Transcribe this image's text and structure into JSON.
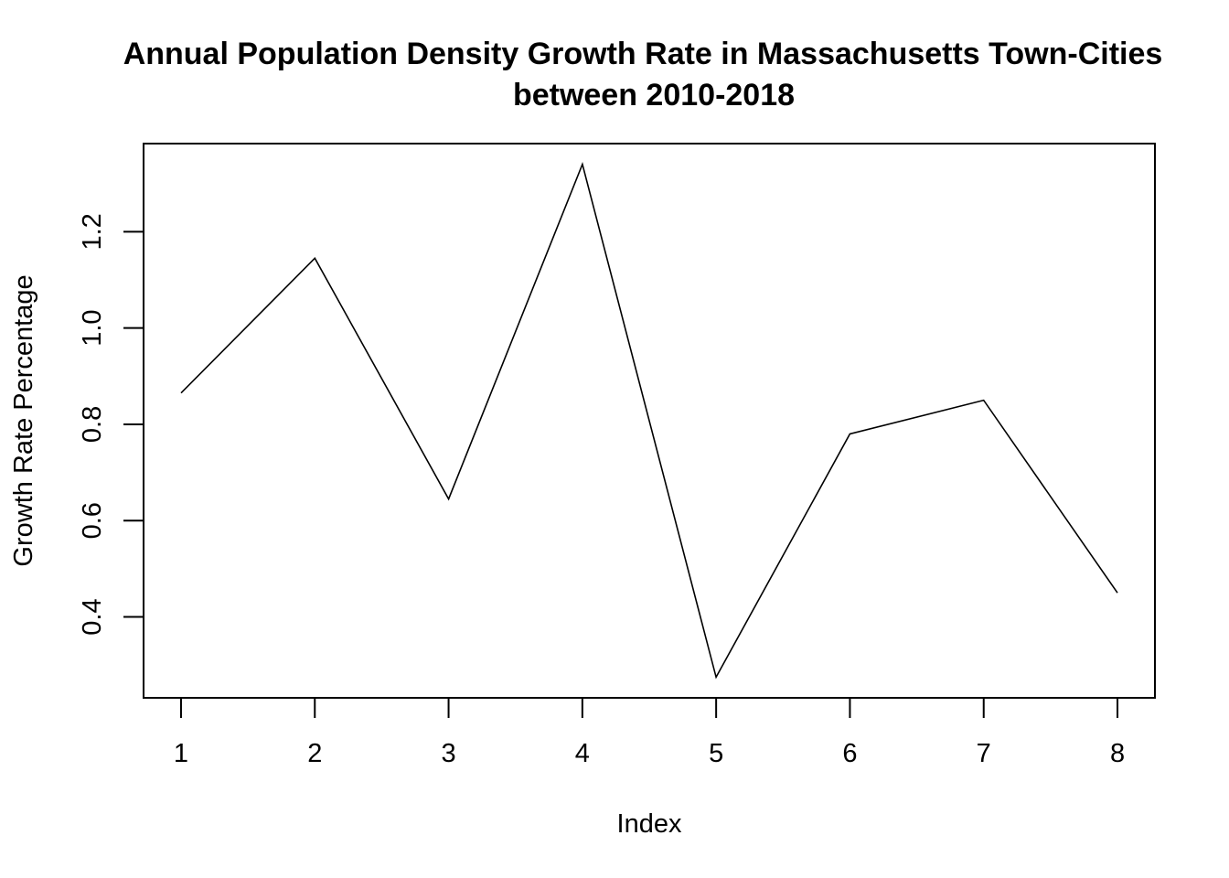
{
  "chart_data": {
    "type": "line",
    "title_line1": "Annual Population Density Growth Rate in Massachusetts Town-Cities",
    "title_line2": "between 2010-2018",
    "xlabel": "Index",
    "ylabel": "Growth Rate Percentage",
    "x": [
      1,
      2,
      3,
      4,
      5,
      6,
      7,
      8
    ],
    "values": [
      0.865,
      1.145,
      0.645,
      1.34,
      0.275,
      0.78,
      0.85,
      0.45
    ],
    "x_ticks": [
      1,
      2,
      3,
      4,
      5,
      6,
      7,
      8
    ],
    "x_tick_labels": [
      "1",
      "2",
      "3",
      "4",
      "5",
      "6",
      "7",
      "8"
    ],
    "y_ticks": [
      0.4,
      0.6,
      0.8,
      1.0,
      1.2
    ],
    "y_tick_labels": [
      "0.4",
      "0.6",
      "0.8",
      "1.0",
      "1.2"
    ],
    "xlim": [
      0.72,
      8.28
    ],
    "ylim": [
      0.232,
      1.383
    ],
    "grid": false,
    "legend": "none",
    "line_color": "#000000"
  }
}
